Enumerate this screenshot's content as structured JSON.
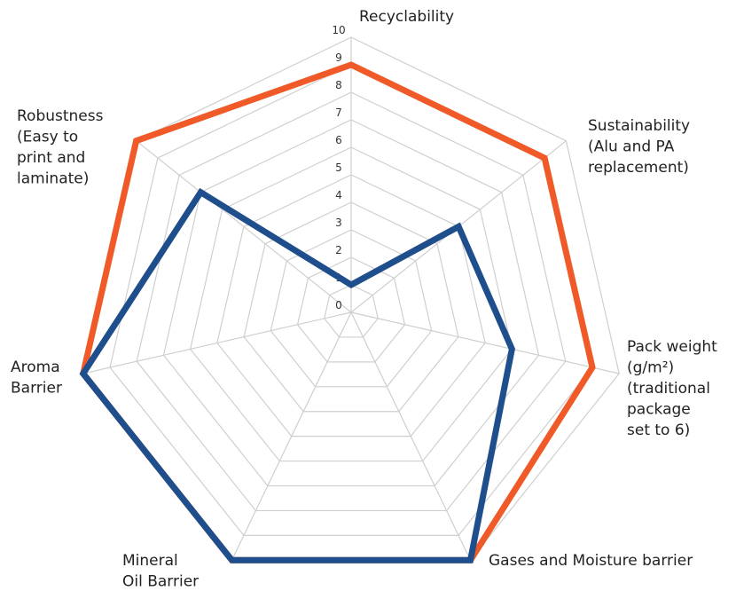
{
  "chart_data": {
    "type": "radar",
    "categories": [
      [
        "Recyclability"
      ],
      [
        "Sustainability",
        "(Alu and PA",
        "replacement)"
      ],
      [
        "Pack weight",
        "(g/m²)",
        "(traditional",
        "package",
        "set to 6)"
      ],
      [
        "Gases and Moisture barrier"
      ],
      [
        "Mineral",
        "Oil Barrier"
      ],
      [
        "Aroma",
        "Barrier"
      ],
      [
        "Robustness",
        "(Easy to",
        "print and",
        "laminate)"
      ]
    ],
    "series": [
      {
        "color": "#f05a28",
        "values": [
          9,
          9,
          9,
          10,
          10,
          10,
          10
        ]
      },
      {
        "color": "#1f4e8c",
        "values": [
          1,
          5,
          6,
          10,
          10,
          10,
          7
        ]
      }
    ],
    "ylim": [
      0,
      10
    ],
    "yticks": [
      0,
      1,
      2,
      3,
      4,
      5,
      6,
      7,
      8,
      9,
      10
    ],
    "grid": true
  }
}
